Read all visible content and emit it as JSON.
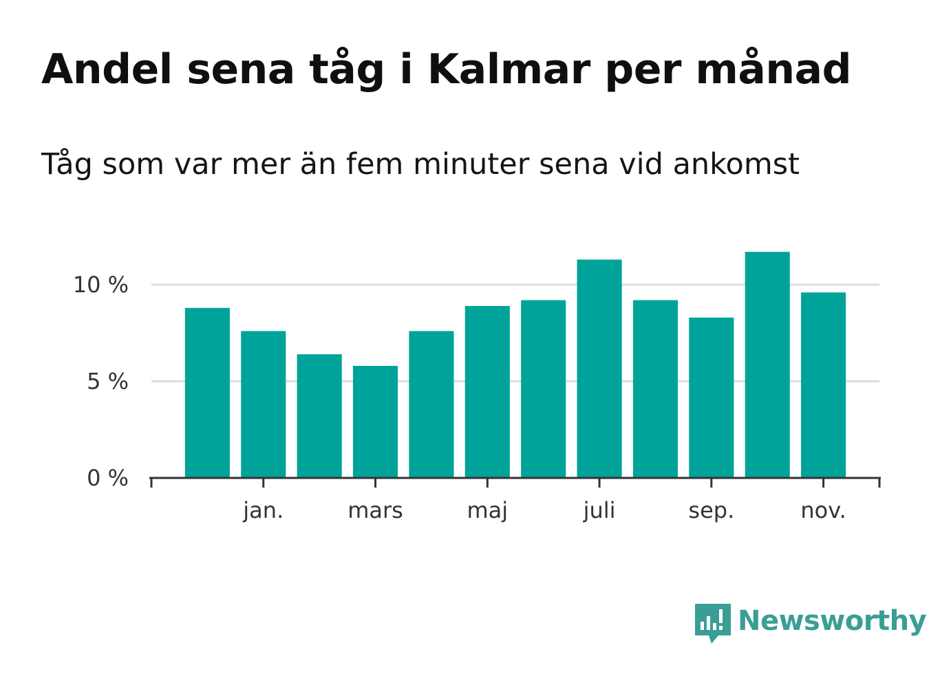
{
  "title": "Andel sena tåg i Kalmar per månad",
  "subtitle": "Tåg som var mer än fem minuter sena vid ankomst",
  "brand": {
    "name": "Newsworthy",
    "color": "#3a9e95",
    "icon": "newsworthy-logo-icon"
  },
  "colors": {
    "bar": "#00a39a",
    "grid": "#dddddd",
    "axis": "#333333"
  },
  "chart_data": {
    "type": "bar",
    "title": "Andel sena tåg i Kalmar per månad",
    "subtitle": "Tåg som var mer än fem minuter sena vid ankomst",
    "xlabel": "",
    "ylabel": "",
    "ylim": [
      0,
      12
    ],
    "yticks": [
      0,
      5,
      10
    ],
    "ytick_labels": [
      "0 %",
      "5 %",
      "10 %"
    ],
    "grid": true,
    "series": [
      {
        "name": "Andel sena tåg",
        "values": [
          8.8,
          7.6,
          6.4,
          5.8,
          7.6,
          8.9,
          9.2,
          11.3,
          9.2,
          8.3,
          11.7,
          9.6
        ]
      }
    ],
    "xticks": [
      {
        "index": 1,
        "label": "jan."
      },
      {
        "index": 3,
        "label": "mars"
      },
      {
        "index": 5,
        "label": "maj"
      },
      {
        "index": 7,
        "label": "juli"
      },
      {
        "index": 9,
        "label": "sep."
      },
      {
        "index": 11,
        "label": "nov."
      }
    ]
  }
}
